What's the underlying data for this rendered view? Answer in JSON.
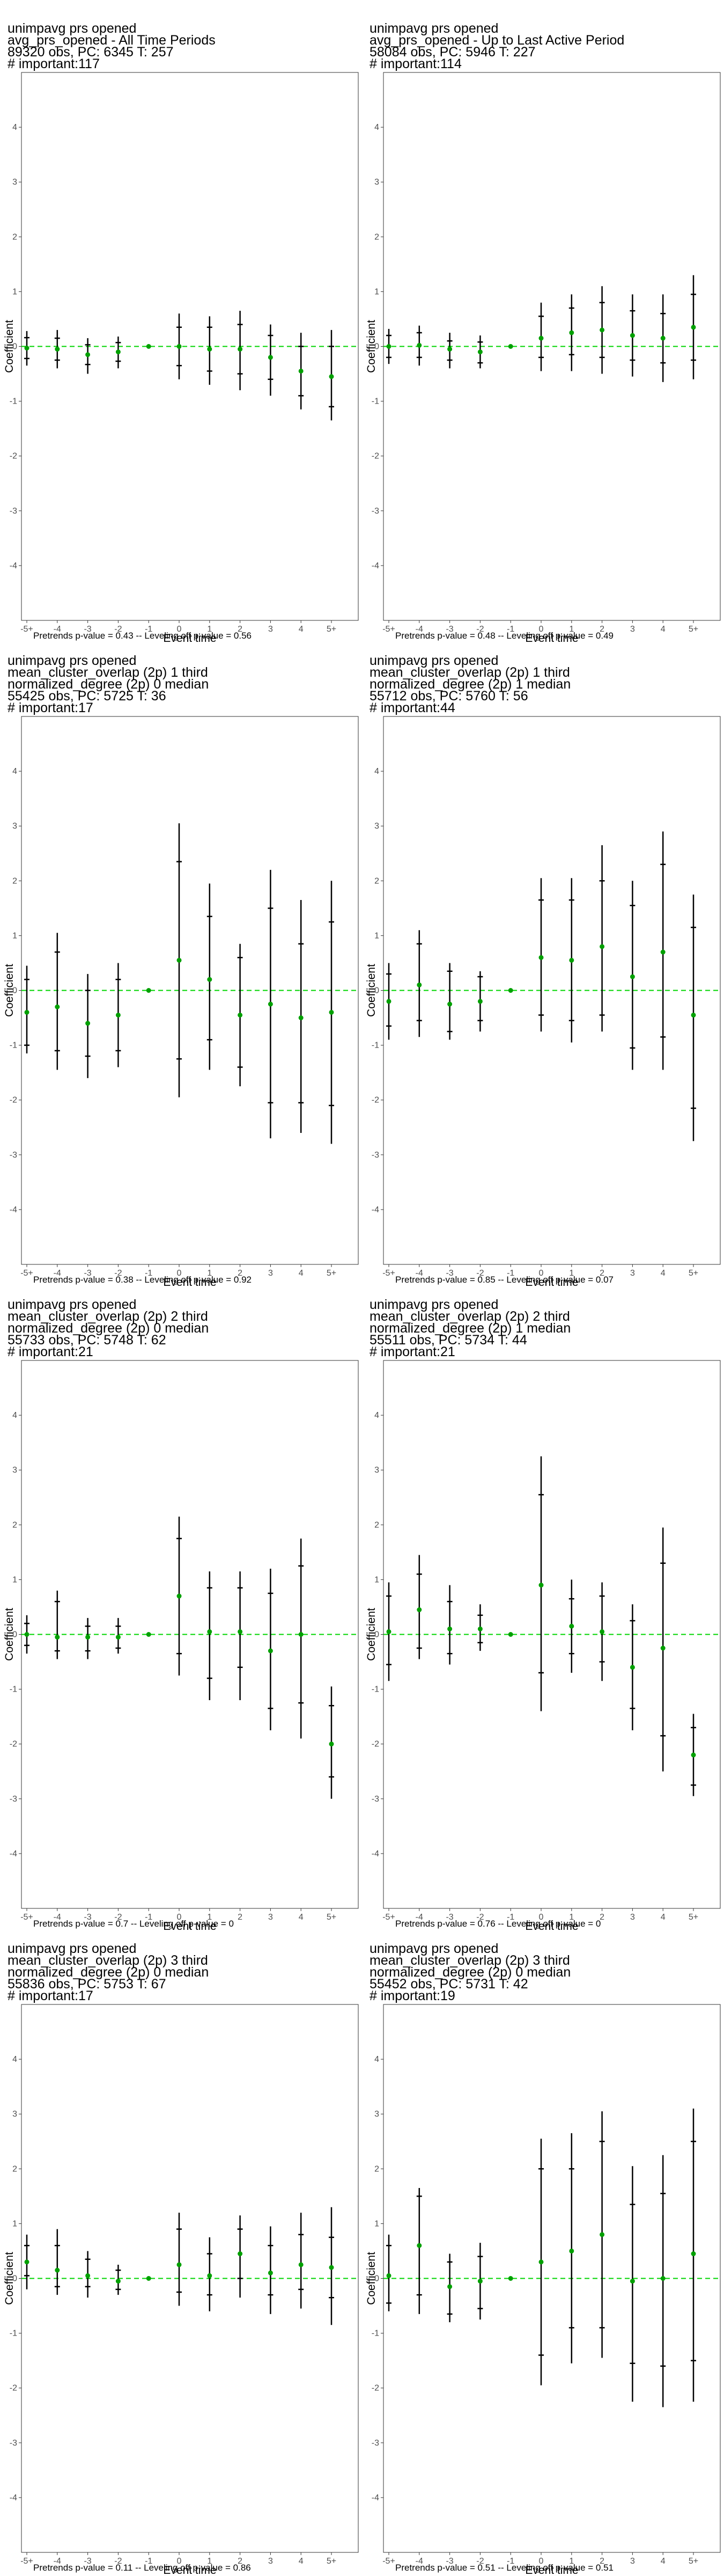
{
  "x_tick_labels": [
    "-5+",
    "-4",
    "-3",
    "-2",
    "-1",
    "0",
    "1",
    "2",
    "3",
    "4",
    "5+"
  ],
  "y_tick_labels": [
    "-4",
    "-3",
    "-2",
    "-1",
    "0",
    "1",
    "2",
    "3",
    "4"
  ],
  "colors": {
    "point": "#00a000",
    "refline": "#00d400",
    "ci": "#000000",
    "frame": "#333333"
  },
  "chart_data": [
    {
      "type": "scatter",
      "title_lines": [
        " unimpavg prs opened",
        "avg_prs_opened - All Time Periods",
        "89320 obs, PC: 6345 T: 257",
        "# important:117"
      ],
      "xlabel": "Event time",
      "ylabel": "Coefficient",
      "ylim": [
        -5,
        5
      ],
      "caption": "Pretrends p-value = 0.43 -- Leveling off p-value = 0.56",
      "x": [
        "-5+",
        "-4",
        "-3",
        "-2",
        "-1",
        "0",
        "1",
        "2",
        "3",
        "4",
        "5+"
      ],
      "coef": [
        -0.03,
        -0.05,
        -0.15,
        -0.1,
        0,
        0.0,
        -0.05,
        -0.05,
        -0.2,
        -0.45,
        -0.55
      ],
      "ci_inner": [
        [
          -0.22,
          0.16
        ],
        [
          -0.25,
          0.15
        ],
        [
          -0.33,
          0.03
        ],
        [
          -0.27,
          0.07
        ],
        null,
        [
          -0.35,
          0.35
        ],
        [
          -0.45,
          0.35
        ],
        [
          -0.5,
          0.4
        ],
        [
          -0.6,
          0.2
        ],
        [
          -0.9,
          0.0
        ],
        [
          -1.1,
          0.0
        ]
      ],
      "ci_outer": [
        [
          -0.35,
          0.28
        ],
        [
          -0.4,
          0.3
        ],
        [
          -0.5,
          0.15
        ],
        [
          -0.4,
          0.18
        ],
        null,
        [
          -0.6,
          0.6
        ],
        [
          -0.7,
          0.55
        ],
        [
          -0.8,
          0.65
        ],
        [
          -0.9,
          0.4
        ],
        [
          -1.15,
          0.25
        ],
        [
          -1.35,
          0.3
        ]
      ]
    },
    {
      "type": "scatter",
      "title_lines": [
        " unimpavg prs opened",
        "avg_prs_opened - Up to Last Active Period",
        "58084 obs, PC: 5946 T: 227",
        "# important:114"
      ],
      "xlabel": "Event time",
      "ylabel": "Coefficient",
      "ylim": [
        -5,
        5
      ],
      "caption": "Pretrends p-value = 0.48 -- Leveling off p-value = 0.49",
      "x": [
        "-5+",
        "-4",
        "-3",
        "-2",
        "-1",
        "0",
        "1",
        "2",
        "3",
        "4",
        "5+"
      ],
      "coef": [
        0.0,
        0.02,
        -0.05,
        -0.1,
        0,
        0.15,
        0.25,
        0.3,
        0.2,
        0.15,
        0.35
      ],
      "ci_inner": [
        [
          -0.2,
          0.2
        ],
        [
          -0.2,
          0.25
        ],
        [
          -0.25,
          0.1
        ],
        [
          -0.3,
          0.08
        ],
        null,
        [
          -0.2,
          0.55
        ],
        [
          -0.15,
          0.7
        ],
        [
          -0.2,
          0.8
        ],
        [
          -0.25,
          0.65
        ],
        [
          -0.3,
          0.6
        ],
        [
          -0.25,
          0.95
        ]
      ],
      "ci_outer": [
        [
          -0.32,
          0.32
        ],
        [
          -0.35,
          0.38
        ],
        [
          -0.4,
          0.25
        ],
        [
          -0.4,
          0.2
        ],
        null,
        [
          -0.45,
          0.8
        ],
        [
          -0.45,
          0.95
        ],
        [
          -0.5,
          1.1
        ],
        [
          -0.55,
          0.95
        ],
        [
          -0.65,
          0.95
        ],
        [
          -0.6,
          1.3
        ]
      ]
    },
    {
      "type": "scatter",
      "title_lines": [
        " unimpavg prs opened",
        "mean_cluster_overlap (2p) 1 third",
        "normalized_degree (2p) 0 median",
        "55425 obs, PC: 5725 T: 36",
        "# important:17"
      ],
      "xlabel": "Event time",
      "ylabel": "Coefficient",
      "ylim": [
        -5,
        5
      ],
      "caption": "Pretrends p-value = 0.38 -- Leveling off p-value = 0.92",
      "x": [
        "-5+",
        "-4",
        "-3",
        "-2",
        "-1",
        "0",
        "1",
        "2",
        "3",
        "4",
        "5+"
      ],
      "coef": [
        -0.4,
        -0.3,
        -0.6,
        -0.45,
        0,
        0.55,
        0.2,
        -0.45,
        -0.25,
        -0.5,
        -0.4
      ],
      "ci_inner": [
        [
          -1.0,
          0.2
        ],
        [
          -1.1,
          0.7
        ],
        [
          -1.2,
          0.0
        ],
        [
          -1.1,
          0.2
        ],
        null,
        [
          -1.25,
          2.35
        ],
        [
          -0.9,
          1.35
        ],
        [
          -1.4,
          0.6
        ],
        [
          -2.05,
          1.5
        ],
        [
          -2.05,
          0.85
        ],
        [
          -2.1,
          1.25
        ]
      ],
      "ci_outer": [
        [
          -1.15,
          0.45
        ],
        [
          -1.45,
          1.05
        ],
        [
          -1.6,
          0.3
        ],
        [
          -1.4,
          0.5
        ],
        null,
        [
          -1.95,
          3.05
        ],
        [
          -1.45,
          1.95
        ],
        [
          -1.75,
          0.85
        ],
        [
          -2.7,
          2.2
        ],
        [
          -2.6,
          1.65
        ],
        [
          -2.8,
          2.0
        ]
      ]
    },
    {
      "type": "scatter",
      "title_lines": [
        " unimpavg prs opened",
        "mean_cluster_overlap (2p) 1 third",
        "normalized_degree (2p) 1 median",
        "55712 obs, PC: 5760 T: 56",
        "# important:44"
      ],
      "xlabel": "Event time",
      "ylabel": "Coefficient",
      "ylim": [
        -5,
        5
      ],
      "caption": "Pretrends p-value = 0.85 -- Leveling off p-value = 0.07",
      "x": [
        "-5+",
        "-4",
        "-3",
        "-2",
        "-1",
        "0",
        "1",
        "2",
        "3",
        "4",
        "5+"
      ],
      "coef": [
        -0.2,
        0.1,
        -0.25,
        -0.2,
        0,
        0.6,
        0.55,
        0.8,
        0.25,
        0.7,
        -0.45
      ],
      "ci_inner": [
        [
          -0.65,
          0.3
        ],
        [
          -0.55,
          0.85
        ],
        [
          -0.75,
          0.35
        ],
        [
          -0.55,
          0.25
        ],
        null,
        [
          -0.45,
          1.65
        ],
        [
          -0.55,
          1.65
        ],
        [
          -0.45,
          2.0
        ],
        [
          -1.05,
          1.55
        ],
        [
          -0.85,
          2.3
        ],
        [
          -2.15,
          1.15
        ]
      ],
      "ci_outer": [
        [
          -0.9,
          0.5
        ],
        [
          -0.85,
          1.1
        ],
        [
          -0.9,
          0.5
        ],
        [
          -0.75,
          0.35
        ],
        null,
        [
          -0.75,
          2.05
        ],
        [
          -0.95,
          2.05
        ],
        [
          -0.75,
          2.65
        ],
        [
          -1.45,
          2.0
        ],
        [
          -1.45,
          2.9
        ],
        [
          -2.75,
          1.75
        ]
      ]
    },
    {
      "type": "scatter",
      "title_lines": [
        " unimpavg prs opened",
        "mean_cluster_overlap (2p) 2 third",
        "normalized_degree (2p) 0 median",
        "55733 obs, PC: 5748 T: 62",
        "# important:21"
      ],
      "xlabel": "Event time",
      "ylabel": "Coefficient",
      "ylim": [
        -5,
        5
      ],
      "caption": "Pretrends p-value = 0.7 -- Leveling off p-value = 0",
      "x": [
        "-5+",
        "-4",
        "-3",
        "-2",
        "-1",
        "0",
        "1",
        "2",
        "3",
        "4",
        "5+"
      ],
      "coef": [
        0.0,
        -0.05,
        -0.05,
        -0.05,
        0,
        0.7,
        0.05,
        0.05,
        -0.3,
        0.0,
        -2.0
      ],
      "ci_inner": [
        [
          -0.2,
          0.2
        ],
        [
          -0.3,
          0.6
        ],
        [
          -0.3,
          0.15
        ],
        [
          -0.25,
          0.15
        ],
        null,
        [
          -0.35,
          1.75
        ],
        [
          -0.8,
          0.85
        ],
        [
          -0.6,
          0.85
        ],
        [
          -1.35,
          0.75
        ],
        [
          -1.25,
          1.25
        ],
        [
          -2.6,
          -1.3
        ]
      ],
      "ci_outer": [
        [
          -0.35,
          0.35
        ],
        [
          -0.45,
          0.8
        ],
        [
          -0.45,
          0.3
        ],
        [
          -0.35,
          0.3
        ],
        null,
        [
          -0.75,
          2.15
        ],
        [
          -1.2,
          1.15
        ],
        [
          -1.2,
          1.15
        ],
        [
          -1.75,
          1.2
        ],
        [
          -1.9,
          1.75
        ],
        [
          -3.0,
          -0.95
        ]
      ]
    },
    {
      "type": "scatter",
      "title_lines": [
        " unimpavg prs opened",
        "mean_cluster_overlap (2p) 2 third",
        "normalized_degree (2p) 1 median",
        "55511 obs, PC: 5734 T: 44",
        "# important:21"
      ],
      "xlabel": "Event time",
      "ylabel": "Coefficient",
      "ylim": [
        -5,
        5
      ],
      "caption": "Pretrends p-value = 0.76 -- Leveling off p-value = 0",
      "x": [
        "-5+",
        "-4",
        "-3",
        "-2",
        "-1",
        "0",
        "1",
        "2",
        "3",
        "4",
        "5+"
      ],
      "coef": [
        0.05,
        0.45,
        0.1,
        0.1,
        0,
        0.9,
        0.15,
        0.05,
        -0.6,
        -0.25,
        -2.2
      ],
      "ci_inner": [
        [
          -0.55,
          0.7
        ],
        [
          -0.25,
          1.1
        ],
        [
          -0.35,
          0.6
        ],
        [
          -0.15,
          0.35
        ],
        null,
        [
          -0.7,
          2.55
        ],
        [
          -0.35,
          0.65
        ],
        [
          -0.5,
          0.7
        ],
        [
          -1.35,
          0.25
        ],
        [
          -1.85,
          1.3
        ],
        [
          -2.75,
          -1.7
        ]
      ],
      "ci_outer": [
        [
          -0.85,
          0.95
        ],
        [
          -0.45,
          1.45
        ],
        [
          -0.55,
          0.9
        ],
        [
          -0.3,
          0.55
        ],
        null,
        [
          -1.4,
          3.25
        ],
        [
          -0.7,
          1.0
        ],
        [
          -0.85,
          0.95
        ],
        [
          -1.75,
          0.55
        ],
        [
          -2.5,
          1.95
        ],
        [
          -2.95,
          -1.45
        ]
      ]
    },
    {
      "type": "scatter",
      "title_lines": [
        " unimpavg prs opened",
        "mean_cluster_overlap (2p) 3 third",
        "normalized_degree (2p) 0 median",
        "55836 obs, PC: 5753 T: 67",
        "# important:17"
      ],
      "xlabel": "Event time",
      "ylabel": "Coefficient",
      "ylim": [
        -5,
        5
      ],
      "caption": "Pretrends p-value = 0.11 -- Leveling off p-value = 0.86",
      "x": [
        "-5+",
        "-4",
        "-3",
        "-2",
        "-1",
        "0",
        "1",
        "2",
        "3",
        "4",
        "5+"
      ],
      "coef": [
        0.3,
        0.15,
        0.05,
        -0.05,
        0,
        0.25,
        0.05,
        0.45,
        0.1,
        0.25,
        0.2
      ],
      "ci_inner": [
        [
          0.05,
          0.6
        ],
        [
          -0.15,
          0.6
        ],
        [
          -0.15,
          0.35
        ],
        [
          -0.2,
          0.15
        ],
        null,
        [
          -0.25,
          0.9
        ],
        [
          -0.3,
          0.45
        ],
        [
          0.0,
          0.9
        ],
        [
          -0.3,
          0.6
        ],
        [
          -0.2,
          0.8
        ],
        [
          -0.35,
          0.75
        ]
      ],
      "ci_outer": [
        [
          -0.2,
          0.8
        ],
        [
          -0.3,
          0.9
        ],
        [
          -0.35,
          0.5
        ],
        [
          -0.3,
          0.25
        ],
        null,
        [
          -0.5,
          1.2
        ],
        [
          -0.6,
          0.75
        ],
        [
          -0.35,
          1.15
        ],
        [
          -0.65,
          0.95
        ],
        [
          -0.55,
          1.2
        ],
        [
          -0.85,
          1.3
        ]
      ]
    },
    {
      "type": "scatter",
      "title_lines": [
        " unimpavg prs opened",
        "mean_cluster_overlap (2p) 3 third",
        "normalized_degree (2p) 0 median",
        "55452 obs, PC: 5731 T: 42",
        "# important:19"
      ],
      "xlabel": "Event time",
      "ylabel": "Coefficient",
      "ylim": [
        -5,
        5
      ],
      "caption": "Pretrends p-value = 0.51 -- Leveling off p-value = 0.51",
      "x": [
        "-5+",
        "-4",
        "-3",
        "-2",
        "-1",
        "0",
        "1",
        "2",
        "3",
        "4",
        "5+"
      ],
      "coef": [
        0.05,
        0.6,
        -0.15,
        -0.05,
        0,
        0.3,
        0.5,
        0.8,
        -0.05,
        0.0,
        0.45
      ],
      "ci_inner": [
        [
          -0.45,
          0.6
        ],
        [
          -0.3,
          1.5
        ],
        [
          -0.65,
          0.3
        ],
        [
          -0.55,
          0.4
        ],
        null,
        [
          -1.4,
          2.0
        ],
        [
          -0.9,
          2.0
        ],
        [
          -0.9,
          2.5
        ],
        [
          -1.55,
          1.35
        ],
        [
          -1.6,
          1.55
        ],
        [
          -1.5,
          2.5
        ]
      ],
      "ci_outer": [
        [
          -0.6,
          0.8
        ],
        [
          -0.65,
          1.65
        ],
        [
          -0.8,
          0.45
        ],
        [
          -0.75,
          0.65
        ],
        null,
        [
          -1.95,
          2.55
        ],
        [
          -1.55,
          2.65
        ],
        [
          -1.45,
          3.05
        ],
        [
          -2.25,
          2.05
        ],
        [
          -2.35,
          2.25
        ],
        [
          -2.25,
          3.1
        ]
      ]
    }
  ]
}
